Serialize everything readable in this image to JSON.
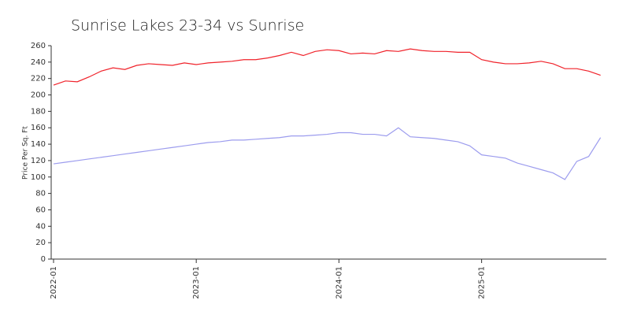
{
  "chart_data": {
    "type": "line",
    "title": "Sunrise Lakes 23-34 vs Sunrise",
    "y_label": "Price Per Sq. Ft",
    "x": [
      "2022-01",
      "2022-02",
      "2022-03",
      "2022-04",
      "2022-05",
      "2022-06",
      "2022-07",
      "2022-08",
      "2022-09",
      "2022-10",
      "2022-11",
      "2022-12",
      "2023-01",
      "2023-02",
      "2023-03",
      "2023-04",
      "2023-05",
      "2023-06",
      "2023-07",
      "2023-08",
      "2023-09",
      "2023-10",
      "2023-11",
      "2023-12",
      "2024-01",
      "2024-02",
      "2024-03",
      "2024-04",
      "2024-05",
      "2024-06",
      "2024-07",
      "2024-08",
      "2024-09",
      "2024-10",
      "2024-11",
      "2024-12",
      "2025-01",
      "2025-02",
      "2025-03",
      "2025-04",
      "2025-05",
      "2025-06",
      "2025-07",
      "2025-08",
      "2025-09",
      "2025-10",
      "2025-11"
    ],
    "series": [
      {
        "color": "#f0222a",
        "values": [
          212,
          217,
          216,
          222,
          229,
          233,
          231,
          236,
          238,
          237,
          236,
          239,
          237,
          239,
          240,
          241,
          243,
          243,
          245,
          248,
          252,
          248,
          253,
          255,
          254,
          250,
          251,
          250,
          254,
          253,
          256,
          254,
          253,
          253,
          252,
          252,
          243,
          240,
          238,
          238,
          239,
          241,
          238,
          232,
          232,
          229,
          224
        ]
      },
      {
        "color": "#9c9cee",
        "values": [
          116,
          118,
          120,
          122,
          124,
          126,
          128,
          130,
          132,
          134,
          136,
          138,
          140,
          142,
          143,
          145,
          145,
          146,
          147,
          148,
          150,
          150,
          151,
          152,
          154,
          154,
          152,
          152,
          150,
          160,
          149,
          148,
          147,
          145,
          143,
          138,
          127,
          125,
          123,
          117,
          113,
          109,
          105,
          97,
          119,
          125,
          148
        ]
      }
    ],
    "ylim": [
      0,
      260
    ],
    "yticks": [
      0,
      20,
      40,
      60,
      80,
      100,
      120,
      140,
      160,
      180,
      200,
      220,
      240,
      260
    ],
    "xticks": [
      "2022-01",
      "2023-01",
      "2024-01",
      "2025-01"
    ]
  }
}
